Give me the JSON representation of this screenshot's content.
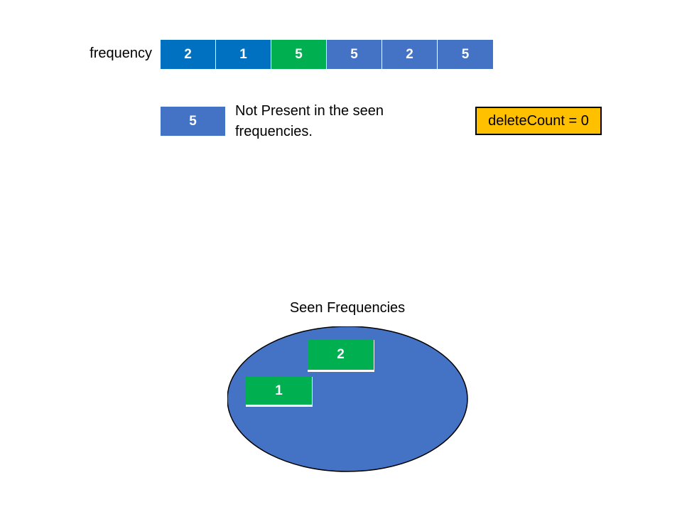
{
  "frequency": {
    "label": "frequency",
    "values": [
      "2",
      "1",
      "5",
      "5",
      "2",
      "5"
    ],
    "highlight_index": 2
  },
  "current": {
    "value": "5",
    "message": "Not Present in the seen frequencies."
  },
  "delete_count": {
    "text": "deleteCount = 0"
  },
  "seen": {
    "title": "Seen Frequencies",
    "items": [
      "2",
      "1"
    ]
  },
  "colors": {
    "dark_blue": "#0070C0",
    "blue": "#4472C4",
    "green": "#00B050",
    "orange": "#FFC000",
    "outline": "#000000"
  }
}
